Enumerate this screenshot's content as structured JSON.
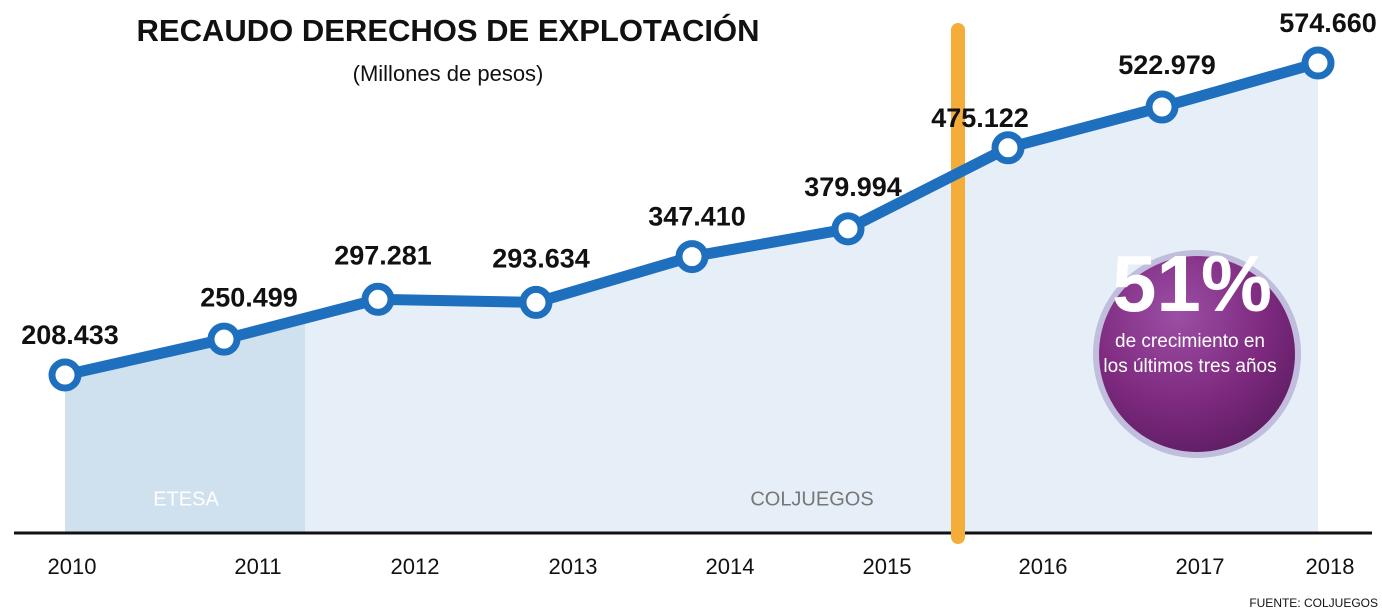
{
  "chart_data": {
    "type": "line",
    "title": "RECAUDO DERECHOS DE EXPLOTACIÓN",
    "subtitle": "(Millones de pesos)",
    "categories": [
      "2010",
      "2011",
      "2012",
      "2013",
      "2014",
      "2015",
      "2016",
      "2017",
      "2018"
    ],
    "series": [
      {
        "name": "Recaudo",
        "color": "#1f6fbf",
        "values": [
          208433,
          250499,
          297281,
          293634,
          347410,
          379994,
          475122,
          522979,
          574660
        ],
        "value_labels": [
          "208.433",
          "250.499",
          "297.281",
          "293.634",
          "347.410",
          "379.994",
          "475.122",
          "522.979",
          "574.660"
        ]
      }
    ],
    "annotations": {
      "period_1": "ETESA",
      "period_2": "COLJUEGOS",
      "growth": "51%",
      "growth_text_1": "de crecimiento en",
      "growth_text_2": "los últimos tres años"
    },
    "source": "FUENTE: COLJUEGOS"
  }
}
